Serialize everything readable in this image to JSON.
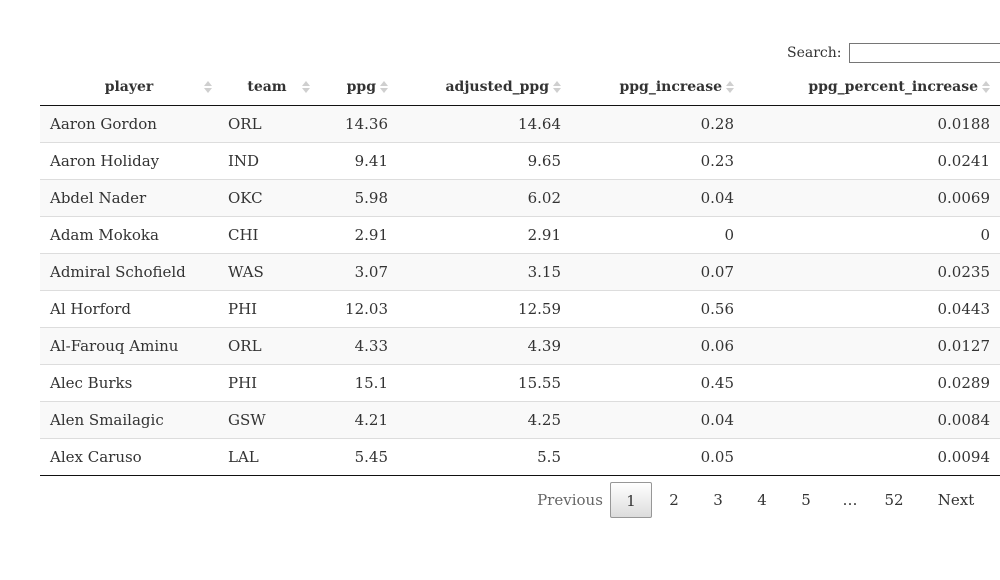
{
  "search": {
    "label": "Search:",
    "value": "",
    "placeholder": ""
  },
  "columns": [
    {
      "label": "player",
      "align": "left"
    },
    {
      "label": "team",
      "align": "left"
    },
    {
      "label": "ppg",
      "align": "right"
    },
    {
      "label": "adjusted_ppg",
      "align": "right"
    },
    {
      "label": "ppg_increase",
      "align": "right"
    },
    {
      "label": "ppg_percent_increase",
      "align": "right"
    }
  ],
  "rows": [
    [
      "Aaron Gordon",
      "ORL",
      "14.36",
      "14.64",
      "0.28",
      "0.0188"
    ],
    [
      "Aaron Holiday",
      "IND",
      "9.41",
      "9.65",
      "0.23",
      "0.0241"
    ],
    [
      "Abdel Nader",
      "OKC",
      "5.98",
      "6.02",
      "0.04",
      "0.0069"
    ],
    [
      "Adam Mokoka",
      "CHI",
      "2.91",
      "2.91",
      "0",
      "0"
    ],
    [
      "Admiral Schofield",
      "WAS",
      "3.07",
      "3.15",
      "0.07",
      "0.0235"
    ],
    [
      "Al Horford",
      "PHI",
      "12.03",
      "12.59",
      "0.56",
      "0.0443"
    ],
    [
      "Al-Farouq Aminu",
      "ORL",
      "4.33",
      "4.39",
      "0.06",
      "0.0127"
    ],
    [
      "Alec Burks",
      "PHI",
      "15.1",
      "15.55",
      "0.45",
      "0.0289"
    ],
    [
      "Alen Smailagic",
      "GSW",
      "4.21",
      "4.25",
      "0.04",
      "0.0084"
    ],
    [
      "Alex Caruso",
      "LAL",
      "5.45",
      "5.5",
      "0.05",
      "0.0094"
    ]
  ],
  "pagination": {
    "previous": "Previous",
    "pages": [
      "1",
      "2",
      "3",
      "4",
      "5",
      "…",
      "52"
    ],
    "current": "1",
    "next": "Next"
  }
}
